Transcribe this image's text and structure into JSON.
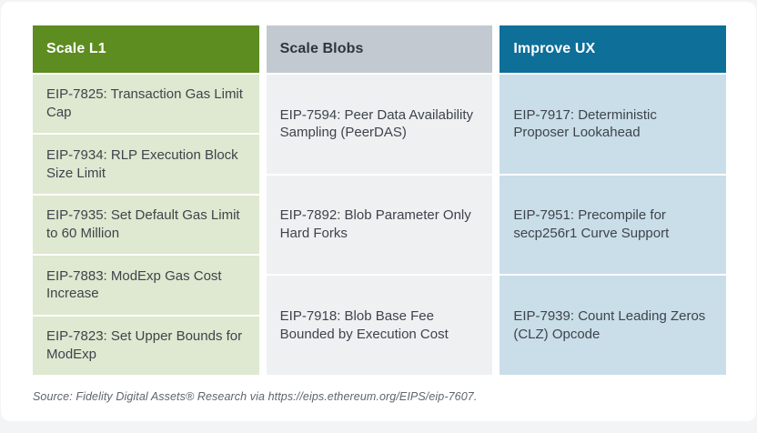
{
  "page": {
    "background_color": "#f3f4f5",
    "card_color": "#ffffff"
  },
  "columns": [
    {
      "header": "Scale L1",
      "header_bg": "#5d8c20",
      "header_text_color": "#ffffff",
      "cell_bg": "#dfe8d0",
      "items": [
        "EIP-7825: Transaction Gas Limit Cap",
        "EIP-7934: RLP Execution Block Size Limit",
        "EIP-7935: Set Default Gas Limit to 60 Million",
        "EIP-7883: ModExp Gas Cost Increase",
        "EIP-7823: Set Upper Bounds for ModExp"
      ]
    },
    {
      "header": "Scale Blobs",
      "header_bg": "#c3c9d0",
      "header_text_color": "#2f353c",
      "cell_bg": "#eef0f2",
      "items": [
        "EIP-7594: Peer Data Availability Sampling (PeerDAS)",
        "EIP-7892: Blob Parameter Only Hard Forks",
        "EIP-7918: Blob Base Fee Bounded by Execution Cost"
      ]
    },
    {
      "header": "Improve UX",
      "header_bg": "#0e6f99",
      "header_text_color": "#ffffff",
      "cell_bg": "#c9dee9",
      "items": [
        "EIP-7917: Deterministic Proposer Lookahead",
        "EIP-7951: Precompile for secp256r1 Curve Support",
        "EIP-7939: Count Leading Zeros (CLZ) Opcode"
      ]
    }
  ],
  "source_note": "Source: Fidelity Digital Assets® Research via https://eips.ethereum.org/EIPS/eip-7607."
}
